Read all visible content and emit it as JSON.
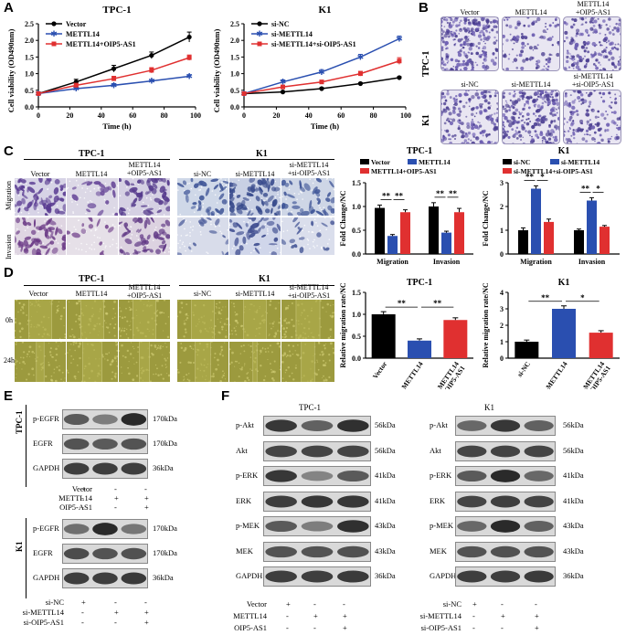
{
  "panels": {
    "A": "A",
    "B": "B",
    "C": "C",
    "D": "D",
    "E": "E",
    "F": "F"
  },
  "panel_a": {
    "tpc1": {
      "title": "TPC-1",
      "legend": [
        "Vector",
        "METTL14",
        "METTL14+OIP5-AS1"
      ],
      "xlabel": "Time (h)",
      "ylabel": "Cell viability (OD490nm)"
    },
    "k1": {
      "title": "K1",
      "legend": [
        "si-NC",
        "si-METTL14",
        "si-METTL14+si-OIP5-AS1"
      ],
      "xlabel": "Time (h)",
      "ylabel": "Cell viability (OD490nm)"
    }
  },
  "panel_b": {
    "row_labels": [
      "TPC-1",
      "K1"
    ],
    "top_labels": [
      "Vector",
      "METTL14",
      "METTL14\n+OIP5-AS1"
    ],
    "bottom_labels": [
      "si-NC",
      "si-METTL14",
      "si-METTL14\n+si-OIP5-AS1"
    ]
  },
  "panel_c": {
    "tpc1_title": "TPC-1",
    "k1_title": "K1",
    "tpc1_cols": [
      "Vector",
      "METTL14",
      "METTL14\n+OIP5-AS1"
    ],
    "k1_cols": [
      "si-NC",
      "si-METTL14",
      "si-METTL14\n+si-OIP5-AS1"
    ],
    "row_labels": [
      "Migration",
      "Invasion"
    ]
  },
  "panel_d": {
    "tpc1_title": "TPC-1",
    "k1_title": "K1",
    "tpc1_cols": [
      "Vector",
      "METTL14",
      "METTL14\n+OIP5-AS1"
    ],
    "k1_cols": [
      "si-NC",
      "si-METTL14",
      "si-METTL14\n+si-OIP5-AS1"
    ],
    "row_labels": [
      "0h",
      "24h"
    ]
  },
  "panel_e": {
    "section1": "TPC-1",
    "section2": "K1",
    "bands1": [
      "p-EGFR",
      "EGFR",
      "GAPDH"
    ],
    "kda1": [
      "170kDa",
      "170kDa",
      "36kDa"
    ],
    "bands2": [
      "p-EGFR",
      "EGFR",
      "GAPDH"
    ],
    "kda2": [
      "170kDa",
      "170kDa",
      "36kDa"
    ],
    "cond1": [
      {
        "name": "Vector",
        "signs": [
          "+",
          "-",
          "-"
        ]
      },
      {
        "name": "METTL14",
        "signs": [
          "-",
          "+",
          "+"
        ]
      },
      {
        "name": "OIP5-AS1",
        "signs": [
          "-",
          "-",
          "+"
        ]
      }
    ],
    "cond2": [
      {
        "name": "si-NC",
        "signs": [
          "+",
          "-",
          "-"
        ]
      },
      {
        "name": "si-METTL14",
        "signs": [
          "-",
          "+",
          "+"
        ]
      },
      {
        "name": "si-OIP5-AS1",
        "signs": [
          "-",
          "-",
          "+"
        ]
      }
    ]
  },
  "panel_f": {
    "tpc1_title": "TPC-1",
    "k1_title": "K1",
    "bands": [
      "p-Akt",
      "Akt",
      "p-ERK",
      "ERK",
      "p-MEK",
      "MEK",
      "GAPDH"
    ],
    "kda": [
      "56kDa",
      "56kDa",
      "41kDa",
      "41kDa",
      "43kDa",
      "43kDa",
      "36kDa"
    ],
    "cond_tpc1": [
      {
        "name": "Vector",
        "signs": [
          "+",
          "-",
          "-"
        ]
      },
      {
        "name": "METTL14",
        "signs": [
          "-",
          "+",
          "+"
        ]
      },
      {
        "name": "OIP5-AS1",
        "signs": [
          "-",
          "-",
          "+"
        ]
      }
    ],
    "cond_k1": [
      {
        "name": "si-NC",
        "signs": [
          "+",
          "-",
          "-"
        ]
      },
      {
        "name": "si-METTL14",
        "signs": [
          "-",
          "+",
          "+"
        ]
      },
      {
        "name": "si-OIP5-AS1",
        "signs": [
          "-",
          "-",
          "+"
        ]
      }
    ]
  },
  "chart_data": [
    {
      "type": "line",
      "title": "TPC-1",
      "xlabel": "Time (h)",
      "ylabel": "Cell viability (OD490nm)",
      "x": [
        0,
        24,
        48,
        72,
        96
      ],
      "xlim": [
        0,
        100
      ],
      "ylim": [
        0,
        2.5
      ],
      "xticks": [
        "0",
        "20",
        "40",
        "60",
        "80",
        "100"
      ],
      "yticks": [
        "0.0",
        "0.5",
        "1.0",
        "1.5",
        "2.0",
        "2.5"
      ],
      "series": [
        {
          "name": "Vector",
          "color": "#000000",
          "values": [
            0.4,
            0.75,
            1.15,
            1.55,
            2.1
          ],
          "err": [
            0.04,
            0.08,
            0.1,
            0.1,
            0.15
          ]
        },
        {
          "name": "METTL14",
          "color": "#2a4fb0",
          "values": [
            0.4,
            0.55,
            0.65,
            0.78,
            0.92
          ],
          "err": [
            0.03,
            0.05,
            0.05,
            0.04,
            0.05
          ]
        },
        {
          "name": "METTL14+OIP5-AS1",
          "color": "#e03030",
          "values": [
            0.4,
            0.65,
            0.85,
            1.1,
            1.48
          ],
          "err": [
            0.03,
            0.06,
            0.07,
            0.08,
            0.08
          ]
        }
      ]
    },
    {
      "type": "line",
      "title": "K1",
      "xlabel": "Time (h)",
      "ylabel": "Cell viability (OD490nm)",
      "x": [
        0,
        24,
        48,
        72,
        96
      ],
      "xlim": [
        0,
        100
      ],
      "ylim": [
        0,
        2.5
      ],
      "xticks": [
        "0",
        "20",
        "40",
        "60",
        "80",
        "100"
      ],
      "yticks": [
        "0.0",
        "0.5",
        "1.0",
        "1.5",
        "2.0",
        "2.5"
      ],
      "series": [
        {
          "name": "si-NC",
          "color": "#000000",
          "values": [
            0.4,
            0.45,
            0.55,
            0.7,
            0.88
          ],
          "err": [
            0.02,
            0.02,
            0.03,
            0.03,
            0.03
          ]
        },
        {
          "name": "si-METTL14",
          "color": "#2a4fb0",
          "values": [
            0.4,
            0.75,
            1.05,
            1.5,
            2.05
          ],
          "err": [
            0.03,
            0.06,
            0.07,
            0.08,
            0.08
          ]
        },
        {
          "name": "si-METTL14+si-OIP5-AS1",
          "color": "#e03030",
          "values": [
            0.4,
            0.6,
            0.75,
            1.0,
            1.38
          ],
          "err": [
            0.03,
            0.05,
            0.05,
            0.07,
            0.1
          ]
        }
      ]
    },
    {
      "type": "bar",
      "title": "TPC-1",
      "ylabel": "Fold Change/NC",
      "ylim": [
        0,
        1.5
      ],
      "yticks": [
        "0.0",
        "0.5",
        "1.0",
        "1.5"
      ],
      "categories": [
        "Migration",
        "Invasion"
      ],
      "series": [
        {
          "name": "Vector",
          "color": "#000000",
          "values": [
            0.97,
            1.0
          ],
          "err": [
            0.06,
            0.08
          ]
        },
        {
          "name": "METTL14",
          "color": "#2a4fb0",
          "values": [
            0.38,
            0.45
          ],
          "err": [
            0.03,
            0.03
          ]
        },
        {
          "name": "METTL14+OIP5-AS1",
          "color": "#e03030",
          "values": [
            0.88,
            0.88
          ],
          "err": [
            0.05,
            0.08
          ]
        }
      ],
      "sig": [
        {
          "text": "**"
        },
        {
          "text": "**"
        },
        {
          "text": "**"
        },
        {
          "text": "**"
        }
      ]
    },
    {
      "type": "bar",
      "title": "K1",
      "ylabel": "Fold Change/NC",
      "ylim": [
        0,
        3
      ],
      "yticks": [
        "0",
        "1",
        "2",
        "3"
      ],
      "categories": [
        "Migration",
        "Invasion"
      ],
      "series": [
        {
          "name": "si-NC",
          "color": "#000000",
          "values": [
            1.0,
            1.0
          ],
          "err": [
            0.1,
            0.05
          ]
        },
        {
          "name": "si-METTL14",
          "color": "#2a4fb0",
          "values": [
            2.75,
            2.25
          ],
          "err": [
            0.12,
            0.12
          ]
        },
        {
          "name": "si-METTL14+si-OIP5-AS1",
          "color": "#e03030",
          "values": [
            1.35,
            1.15
          ],
          "err": [
            0.12,
            0.05
          ]
        }
      ],
      "sig": [
        {
          "text": "**"
        },
        {
          "text": "*"
        },
        {
          "text": "**"
        },
        {
          "text": "*"
        }
      ]
    },
    {
      "type": "bar",
      "title": "TPC-1",
      "ylabel": "Relative migration rate/NC",
      "ylim": [
        0,
        1.5
      ],
      "yticks": [
        "0.0",
        "0.5",
        "1.0",
        "1.5"
      ],
      "categories": [
        "Vector",
        "METTL14",
        "METTL14\n+OIP5-AS1"
      ],
      "series": [
        {
          "values": [
            1.0,
            0.4,
            0.87
          ],
          "err": [
            0.06,
            0.04,
            0.05
          ],
          "colors": [
            "#000000",
            "#2a4fb0",
            "#e03030"
          ]
        }
      ],
      "sig": [
        {
          "text": "**"
        },
        {
          "text": "**"
        }
      ]
    },
    {
      "type": "bar",
      "title": "K1",
      "ylabel": "Relative migration rate/NC",
      "ylim": [
        0,
        4
      ],
      "yticks": [
        "0",
        "1",
        "2",
        "3",
        "4"
      ],
      "categories": [
        "si-NC",
        "si-METTL14",
        "si-METTL14\n+si-OIP5-AS1"
      ],
      "series": [
        {
          "values": [
            1.0,
            3.0,
            1.55
          ],
          "err": [
            0.1,
            0.18,
            0.12
          ],
          "colors": [
            "#000000",
            "#2a4fb0",
            "#e03030"
          ]
        }
      ],
      "sig": [
        {
          "text": "**"
        },
        {
          "text": "*"
        }
      ]
    }
  ]
}
